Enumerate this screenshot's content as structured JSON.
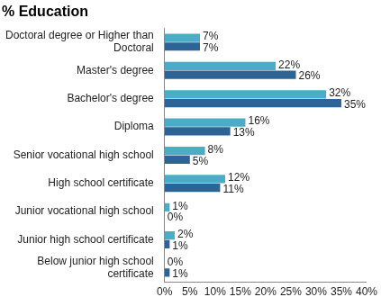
{
  "chart_data": {
    "type": "bar",
    "title": "% Education",
    "orientation": "horizontal",
    "categories": [
      "Doctoral degree or Higher than Doctoral",
      "Master's degree",
      "Bachelor's degree",
      "Diploma",
      "Senior vocational high school",
      "High school certificate",
      "Junior vocational high school",
      "Junior high school certificate",
      "Below junior high school certificate"
    ],
    "series": [
      {
        "color": "#4bacc6",
        "values": [
          7,
          22,
          32,
          16,
          8,
          12,
          1,
          2,
          0
        ],
        "value_labels": [
          "7%",
          "22%",
          "32%",
          "16%",
          "8%",
          "12%",
          "1%",
          "2%",
          "0%"
        ]
      },
      {
        "color": "#2e6396",
        "values": [
          7,
          26,
          35,
          13,
          5,
          11,
          0,
          1,
          1
        ],
        "value_labels": [
          "7%",
          "26%",
          "35%",
          "13%",
          "5%",
          "11%",
          "0%",
          "1%",
          "1%"
        ]
      }
    ],
    "xlim": [
      0,
      40
    ],
    "xticks": [
      {
        "value": 0,
        "label": "0%"
      },
      {
        "value": 5,
        "label": "5%"
      },
      {
        "value": 10,
        "label": "10%"
      },
      {
        "value": 15,
        "label": "15%"
      },
      {
        "value": 20,
        "label": "20%"
      },
      {
        "value": 25,
        "label": "25%"
      },
      {
        "value": 30,
        "label": "30%"
      },
      {
        "value": 35,
        "label": "35%"
      },
      {
        "value": 40,
        "label": "40%"
      }
    ],
    "grid": false,
    "data_labels": true
  }
}
